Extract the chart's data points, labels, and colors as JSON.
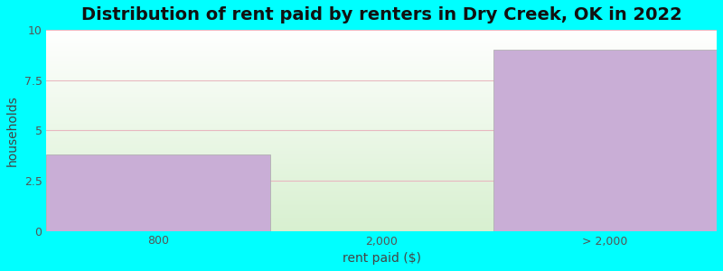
{
  "categories": [
    "800",
    "2,000",
    "> 2,000"
  ],
  "values": [
    3.8,
    0,
    9.0
  ],
  "bar_color": "#c9aed6",
  "bar_edgecolor": "#aaaaaa",
  "bg_color": "#00ffff",
  "plot_bg_top_color": "#ffffff",
  "plot_bg_bottom_color": "#d8f0d0",
  "title": "Distribution of rent paid by renters in Dry Creek, OK in 2022",
  "xlabel": "rent paid ($)",
  "ylabel": "households",
  "ylim": [
    0,
    10
  ],
  "yticks": [
    0,
    2.5,
    5,
    7.5,
    10
  ],
  "title_fontsize": 14,
  "axis_label_fontsize": 10,
  "tick_fontsize": 9,
  "grid_color": "#e8b8c0",
  "grid_linewidth": 0.8
}
